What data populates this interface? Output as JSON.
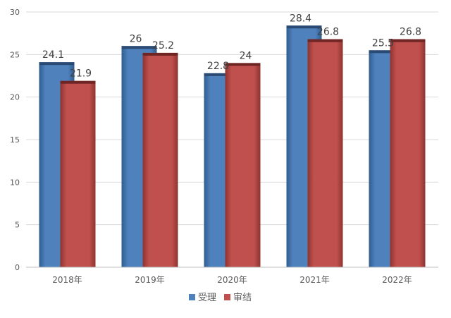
{
  "chart_data": {
    "type": "bar",
    "categories": [
      "2018年",
      "2019年",
      "2020年",
      "2021年",
      "2022年"
    ],
    "series": [
      {
        "name": "受理",
        "values": [
          24.1,
          26,
          22.8,
          28.4,
          25.5
        ],
        "color": "#4f81bd",
        "dark_color": "#2a4a73"
      },
      {
        "name": "审结",
        "values": [
          21.9,
          25.2,
          24,
          26.8,
          26.8
        ],
        "color": "#c0504d",
        "dark_color": "#6e2523"
      }
    ],
    "ylim": [
      0,
      30
    ],
    "yticks": [
      0,
      5,
      10,
      15,
      20,
      25,
      30
    ],
    "grid": true,
    "legend_position": "bottom",
    "data_labels": true
  }
}
